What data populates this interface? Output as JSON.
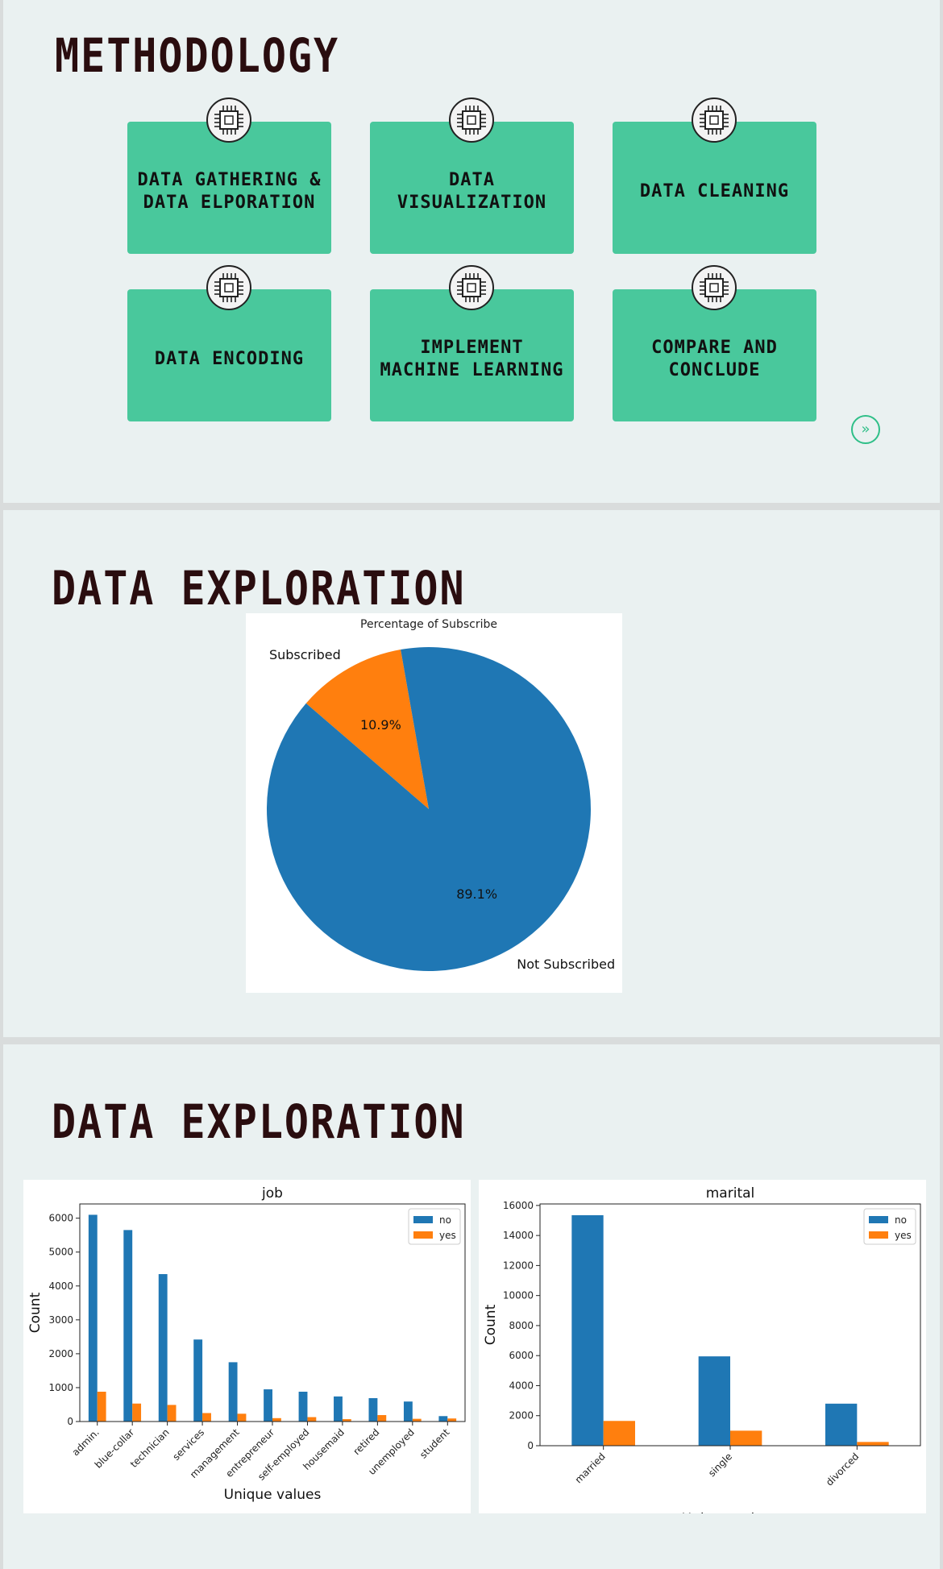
{
  "slides": [
    {
      "title": "METHODOLOGY",
      "cards": [
        {
          "label": "DATA GATHERING &\nDATA ELPORATION",
          "icon": "processor-chip-icon"
        },
        {
          "label": "DATA\nVISUALIZATION",
          "icon": "processor-chip-icon"
        },
        {
          "label": "DATA CLEANING",
          "icon": "processor-chip-icon"
        },
        {
          "label": "DATA ENCODING",
          "icon": "processor-chip-icon"
        },
        {
          "label": "IMPLEMENT\nMACHINE LEARNING",
          "icon": "processor-chip-icon"
        },
        {
          "label": "COMPARE AND\nCONCLUDE",
          "icon": "processor-chip-icon"
        }
      ],
      "next_button": {
        "icon": "double-chevron-right-icon",
        "glyph": "»"
      }
    },
    {
      "title": "DATA EXPLORATION"
    },
    {
      "title": "DATA EXPLORATION"
    }
  ],
  "colors": {
    "card": "#49c89c",
    "title": "#2a0d0f",
    "no": "#1f77b4",
    "yes": "#ff7f0e",
    "accent": "#2fbf88"
  },
  "chart_data": [
    {
      "type": "pie",
      "title": "Percentage of Subscribe",
      "slices": [
        {
          "label": "Subscribed",
          "value": 10.9,
          "pct_label": "10.9%",
          "color": "#ff7f0e"
        },
        {
          "label": "Not Subscribed",
          "value": 89.1,
          "pct_label": "89.1%",
          "color": "#1f77b4"
        }
      ]
    },
    {
      "type": "bar",
      "title": "job",
      "xlabel": "Unique values",
      "ylabel": "Count",
      "categories": [
        "admin.",
        "blue-collar",
        "technician",
        "services",
        "management",
        "entrepreneur",
        "self-employed",
        "housemaid",
        "retired",
        "unemployed",
        "student"
      ],
      "series": [
        {
          "name": "no",
          "values": [
            6100,
            5650,
            4350,
            2420,
            1750,
            950,
            880,
            740,
            690,
            590,
            160
          ]
        },
        {
          "name": "yes",
          "values": [
            880,
            530,
            490,
            250,
            230,
            100,
            130,
            70,
            190,
            80,
            90
          ]
        }
      ],
      "ylim": [
        0,
        6420
      ],
      "yticks": [
        0,
        1000,
        2000,
        3000,
        4000,
        5000,
        6000
      ],
      "legend": "top-right",
      "grid": false
    },
    {
      "type": "bar",
      "title": "marital",
      "xlabel": "Unique values",
      "ylabel": "Count",
      "categories": [
        "married",
        "single",
        "divorced"
      ],
      "series": [
        {
          "name": "no",
          "values": [
            15350,
            5950,
            2800
          ]
        },
        {
          "name": "yes",
          "values": [
            1650,
            1000,
            250
          ]
        }
      ],
      "ylim": [
        0,
        16100
      ],
      "yticks": [
        0,
        2000,
        4000,
        6000,
        8000,
        10000,
        12000,
        14000,
        16000
      ],
      "legend": "top-right",
      "grid": false
    }
  ]
}
